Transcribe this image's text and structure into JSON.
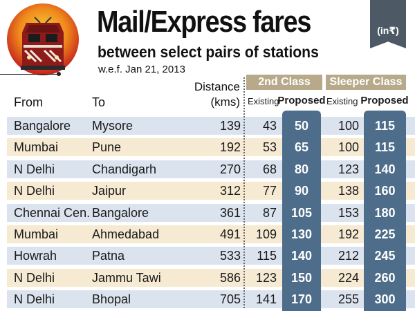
{
  "title": "Mail/Express fares",
  "subtitle": "between select pairs of stations",
  "effective_date": "w.e.f. Jan 21, 2013",
  "unit": "(in₹)",
  "columns": {
    "from": "From",
    "to": "To",
    "distance_line1": "Distance",
    "distance_line2": "(kms)",
    "second_class": "2nd Class",
    "sleeper_class": "Sleeper Class",
    "existing": "Existing",
    "proposed": "Proposed"
  },
  "colors": {
    "row_blue": "#dbe4ee",
    "row_cream": "#f6ead3",
    "proposed_column": "#4d6d8a",
    "banner": "#b8a98a",
    "unit_tab": "#4d5a66"
  },
  "chart_data": {
    "type": "table",
    "title": "Mail/Express fares",
    "subtitle": "between select pairs of stations",
    "headers": [
      "From",
      "To",
      "Distance (kms)",
      "2nd Class Existing",
      "2nd Class Proposed",
      "Sleeper Class Existing",
      "Sleeper Class Proposed"
    ],
    "rows": [
      {
        "from": "Bangalore",
        "to": "Mysore",
        "distance": "139",
        "second_existing": "43",
        "second_proposed": "50",
        "sleeper_existing": "100",
        "sleeper_proposed": "115"
      },
      {
        "from": "Mumbai",
        "to": "Pune",
        "distance": "192",
        "second_existing": "53",
        "second_proposed": "65",
        "sleeper_existing": "100",
        "sleeper_proposed": "115"
      },
      {
        "from": "N Delhi",
        "to": "Chandigarh",
        "distance": "270",
        "second_existing": "68",
        "second_proposed": "80",
        "sleeper_existing": "123",
        "sleeper_proposed": "140"
      },
      {
        "from": "N Delhi",
        "to": "Jaipur",
        "distance": "312",
        "second_existing": "77",
        "second_proposed": "90",
        "sleeper_existing": "138",
        "sleeper_proposed": "160"
      },
      {
        "from": "Chennai Cen.",
        "to": "Bangalore",
        "distance": "361",
        "second_existing": "87",
        "second_proposed": "105",
        "sleeper_existing": "153",
        "sleeper_proposed": "180"
      },
      {
        "from": "Mumbai",
        "to": "Ahmedabad",
        "distance": "491",
        "second_existing": "109",
        "second_proposed": "130",
        "sleeper_existing": "192",
        "sleeper_proposed": "225"
      },
      {
        "from": "Howrah",
        "to": "Patna",
        "distance": "533",
        "second_existing": "115",
        "second_proposed": "140",
        "sleeper_existing": "212",
        "sleeper_proposed": "245"
      },
      {
        "from": "N Delhi",
        "to": "Jammu Tawi",
        "distance": "586",
        "second_existing": "123",
        "second_proposed": "150",
        "sleeper_existing": "224",
        "sleeper_proposed": "260"
      },
      {
        "from": "N Delhi",
        "to": "Bhopal",
        "distance": "705",
        "second_existing": "141",
        "second_proposed": "170",
        "sleeper_existing": "255",
        "sleeper_proposed": "300"
      }
    ]
  }
}
